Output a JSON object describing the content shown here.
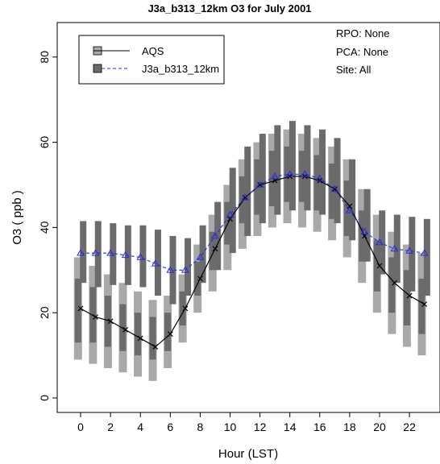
{
  "chart_data": {
    "type": "boxplot-line",
    "title": "J3a_b313_12km O3 for  July 2001",
    "xlabel": "Hour (LST)",
    "ylabel": "O3 ( ppb )",
    "ylim": [
      -3,
      88
    ],
    "yticks": [
      0,
      20,
      40,
      60,
      80
    ],
    "xticks": [
      0,
      2,
      4,
      6,
      8,
      10,
      12,
      14,
      16,
      18,
      20,
      22
    ],
    "grid": false,
    "legend_position": "top-left",
    "x": [
      0,
      1,
      2,
      3,
      4,
      5,
      6,
      7,
      8,
      9,
      10,
      11,
      12,
      13,
      14,
      15,
      16,
      17,
      18,
      19,
      20,
      21,
      22,
      23
    ],
    "series": [
      {
        "name": "AQS",
        "style": "solid",
        "marker": "x",
        "color": "#000000",
        "box_color": "#a9a9a9",
        "values": [
          21,
          19,
          18,
          16,
          14,
          12,
          15,
          21,
          28,
          35,
          42,
          47,
          50,
          51,
          52,
          52,
          51,
          49,
          45,
          38,
          31,
          27,
          24,
          22
        ],
        "box_outer": [
          [
            9,
            33
          ],
          [
            8,
            31
          ],
          [
            7,
            29
          ],
          [
            6,
            27
          ],
          [
            5,
            25
          ],
          [
            4,
            23
          ],
          [
            7,
            24
          ],
          [
            13,
            29
          ],
          [
            20,
            36
          ],
          [
            25,
            43
          ],
          [
            30,
            50
          ],
          [
            35,
            56
          ],
          [
            38,
            60
          ],
          [
            40,
            62
          ],
          [
            41,
            63
          ],
          [
            40,
            62
          ],
          [
            39,
            61
          ],
          [
            37,
            59
          ],
          [
            33,
            56
          ],
          [
            27,
            49
          ],
          [
            20,
            43
          ],
          [
            15,
            39
          ],
          [
            12,
            36
          ],
          [
            10,
            34
          ]
        ],
        "box_inner": [
          [
            13,
            28
          ],
          [
            13,
            26
          ],
          [
            12,
            24
          ],
          [
            11,
            22
          ],
          [
            10,
            20
          ],
          [
            9,
            19
          ],
          [
            11,
            20
          ],
          [
            17,
            25
          ],
          [
            24,
            32
          ],
          [
            30,
            39
          ],
          [
            36,
            46
          ],
          [
            41,
            52
          ],
          [
            43,
            56
          ],
          [
            45,
            58
          ],
          [
            46,
            59
          ],
          [
            46,
            58
          ],
          [
            44,
            57
          ],
          [
            42,
            55
          ],
          [
            38,
            51
          ],
          [
            32,
            44
          ],
          [
            25,
            37
          ],
          [
            20,
            33
          ],
          [
            17,
            30
          ],
          [
            15,
            28
          ]
        ]
      },
      {
        "name": "J3a_b313_12km",
        "style": "dashed",
        "marker": "triangle",
        "color": "#2a2adf",
        "box_color": "#6b6b6b",
        "values": [
          34,
          34,
          34,
          33.5,
          33,
          31.5,
          30,
          30,
          33,
          38,
          43,
          47,
          50,
          52,
          52.5,
          52.5,
          51.5,
          49,
          44,
          39,
          36.5,
          35,
          34.5,
          34
        ],
        "box_outer": [
          [
            27,
            41.5
          ],
          [
            26,
            41.5
          ],
          [
            26.5,
            41
          ],
          [
            26.5,
            40.5
          ],
          [
            26,
            40.5
          ],
          [
            24,
            39.5
          ],
          [
            22,
            38
          ],
          [
            24,
            37.5
          ],
          [
            27,
            40.5
          ],
          [
            30,
            46
          ],
          [
            34,
            54
          ],
          [
            38,
            59
          ],
          [
            41,
            62
          ],
          [
            43,
            64
          ],
          [
            44,
            65
          ],
          [
            44,
            64
          ],
          [
            43,
            63
          ],
          [
            41,
            61
          ],
          [
            37,
            56
          ],
          [
            32,
            49
          ],
          [
            29,
            44
          ],
          [
            27,
            43
          ],
          [
            25,
            42.5
          ],
          [
            24,
            42
          ]
        ],
        "box_inner": [
          [
            30,
            38
          ],
          [
            30,
            38
          ],
          [
            30,
            37.5
          ],
          [
            29.5,
            37
          ],
          [
            29,
            37
          ],
          [
            27.5,
            35.5
          ],
          [
            26,
            34
          ],
          [
            27,
            34
          ],
          [
            30,
            37
          ],
          [
            33,
            42
          ],
          [
            38,
            49
          ],
          [
            42,
            55
          ],
          [
            45,
            58
          ],
          [
            47,
            60
          ],
          [
            48,
            61
          ],
          [
            48,
            61
          ],
          [
            47,
            59
          ],
          [
            45,
            57
          ],
          [
            41,
            52
          ],
          [
            36,
            45
          ],
          [
            33,
            41
          ],
          [
            31,
            39
          ],
          [
            30,
            38
          ],
          [
            29,
            38
          ]
        ]
      }
    ],
    "annotations": [
      "RPO: None",
      "PCA: None",
      "Site: All"
    ]
  }
}
